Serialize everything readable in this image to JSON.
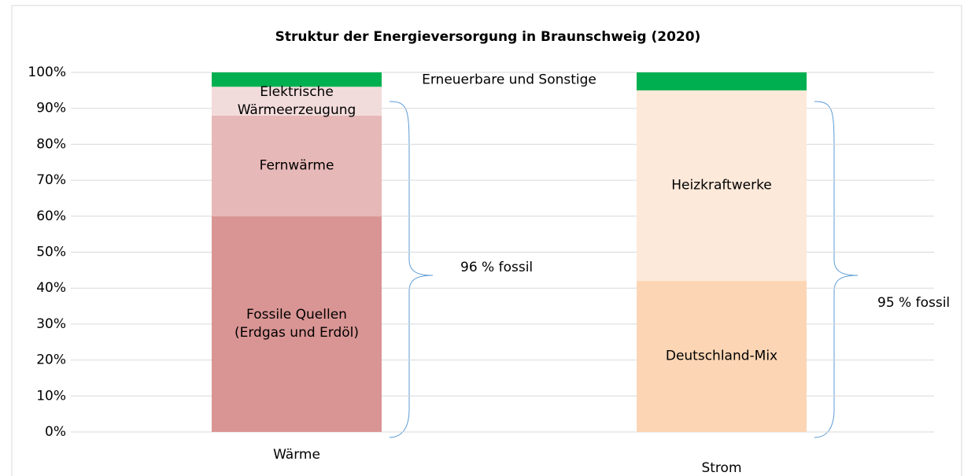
{
  "chart_data": {
    "type": "stacked_bar",
    "title": "Struktur der Energieversorgung in Braunschweig (2020)",
    "categories": [
      "Wärme",
      "Strom"
    ],
    "series": [
      {
        "name": "Fossile Quellen (Erdgas und Erdöl)",
        "color": "#d99594",
        "values": [
          60,
          null
        ]
      },
      {
        "name": "Fernwärme",
        "color": "#e6b8b7",
        "values": [
          28,
          null
        ]
      },
      {
        "name": "Elektrische Wärmeerzeugung",
        "color": "#f2dcdb",
        "values": [
          8,
          null
        ]
      },
      {
        "name": "Deutschland-Mix",
        "color": "#fcd5b4",
        "values": [
          null,
          42
        ]
      },
      {
        "name": "Heizkraftwerke",
        "color": "#fde9d9",
        "values": [
          null,
          53
        ]
      },
      {
        "name": "Erneuerbare und Sonstige",
        "color": "#00b050",
        "values": [
          4,
          5
        ]
      }
    ],
    "annotations": [
      "96 % fossil",
      "95 % fossil"
    ],
    "ylim": [
      0,
      100
    ],
    "yticks": [
      {
        "value": 0,
        "label": "0%"
      },
      {
        "value": 10,
        "label": "10%"
      },
      {
        "value": 20,
        "label": "20%"
      },
      {
        "value": 30,
        "label": "30%"
      },
      {
        "value": 40,
        "label": "40%"
      },
      {
        "value": 50,
        "label": "50%"
      },
      {
        "value": 60,
        "label": "60%"
      },
      {
        "value": 70,
        "label": "70%"
      },
      {
        "value": 80,
        "label": "80%"
      },
      {
        "value": 90,
        "label": "90%"
      },
      {
        "value": 100,
        "label": "100%"
      }
    ],
    "grid": true
  }
}
